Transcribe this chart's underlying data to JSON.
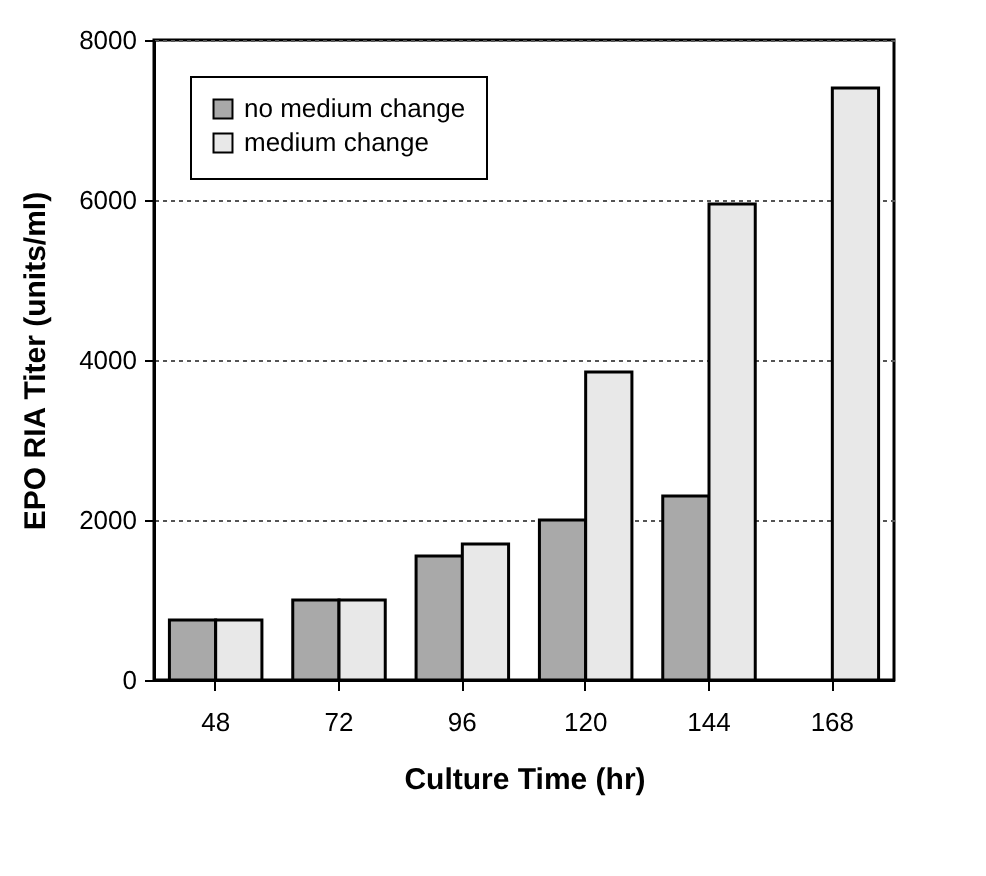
{
  "chart_data": {
    "type": "bar",
    "xlabel": "Culture Time (hr)",
    "ylabel": "EPO RIA Titer (units/ml)",
    "categories": [
      "48",
      "72",
      "96",
      "120",
      "144",
      "168"
    ],
    "series": [
      {
        "name": "no medium change",
        "color": "#a9a9a9",
        "values": [
          750,
          1000,
          1550,
          2000,
          2300,
          null
        ]
      },
      {
        "name": "medium change",
        "color": "#e8e8e8",
        "values": [
          750,
          1000,
          1700,
          3850,
          5950,
          7400
        ]
      }
    ],
    "ylim": [
      0,
      8000
    ],
    "yticks": [
      0,
      2000,
      4000,
      6000,
      8000
    ],
    "grid": "y",
    "legend": "top left"
  }
}
